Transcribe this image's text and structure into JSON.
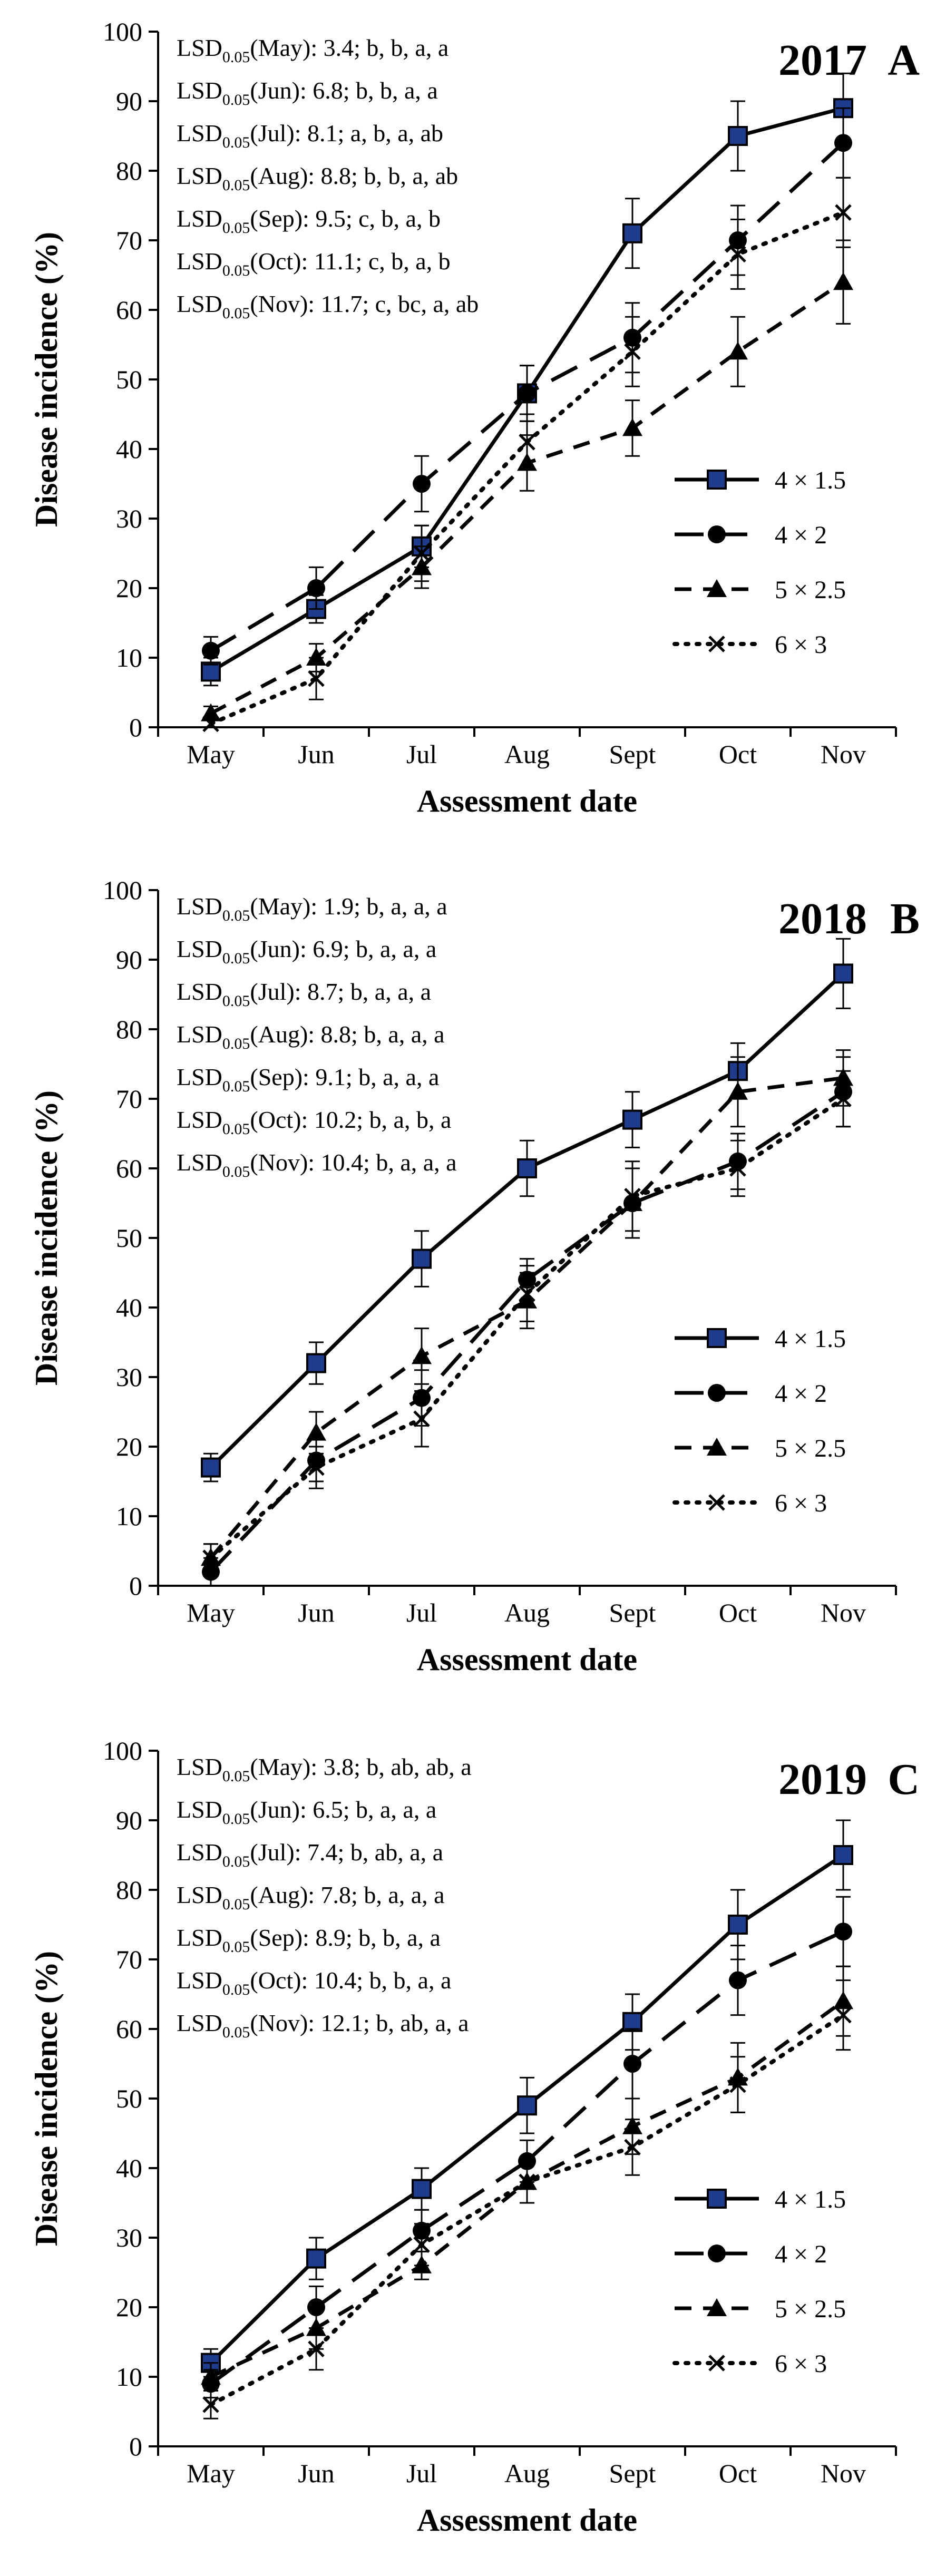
{
  "chart_data": [
    {
      "type": "line",
      "title": "2017",
      "panel_letter": "A",
      "xlabel": "Assessment date",
      "ylabel": "Disease incidence (%)",
      "categories": [
        "May",
        "Jun",
        "Jul",
        "Aug",
        "Sept",
        "Oct",
        "Nov"
      ],
      "ylim": [
        0,
        100
      ],
      "yticks": [
        "0",
        "10",
        "20",
        "30",
        "40",
        "50",
        "60",
        "70",
        "80",
        "90",
        "100"
      ],
      "legend_position": "right-lower",
      "lsd": [
        {
          "pre": "LSD",
          "sub": "0.05",
          "post": "(May):  3.4; b, b, a, a"
        },
        {
          "pre": "LSD",
          "sub": "0.05",
          "post": "(Jun): 6.8; b, b, a, a"
        },
        {
          "pre": "LSD",
          "sub": "0.05",
          "post": "(Jul): 8.1; a, b, a, ab"
        },
        {
          "pre": "LSD",
          "sub": "0.05",
          "post": "(Aug): 8.8; b, b, a, ab"
        },
        {
          "pre": "LSD",
          "sub": "0.05",
          "post": "(Sep): 9.5; c, b, a, b"
        },
        {
          "pre": "LSD",
          "sub": "0.05",
          "post": "(Oct): 11.1; c, b, a, b"
        },
        {
          "pre": "LSD",
          "sub": "0.05",
          "post": "(Nov): 11.7; c, bc, a, ab"
        }
      ],
      "series": [
        {
          "name": "4 × 1.5",
          "marker": "square",
          "dash": "solid",
          "values": [
            8,
            17,
            26,
            48,
            71,
            85,
            89
          ],
          "errors": [
            2,
            2,
            3,
            4,
            5,
            5,
            5
          ]
        },
        {
          "name": "4 × 2",
          "marker": "circle",
          "dash": "longdash",
          "values": [
            11,
            20,
            35,
            48,
            56,
            70,
            84
          ],
          "errors": [
            2,
            3,
            4,
            4,
            5,
            5,
            5
          ]
        },
        {
          "name": "5 × 2.5",
          "marker": "triangle",
          "dash": "dash",
          "values": [
            2,
            10,
            23,
            38,
            43,
            54,
            64
          ],
          "errors": [
            1,
            2,
            3,
            4,
            4,
            5,
            6
          ]
        },
        {
          "name": "6 × 3",
          "marker": "x",
          "dash": "dot",
          "values": [
            0.5,
            7,
            25,
            41,
            54,
            68,
            74
          ],
          "errors": [
            1,
            3,
            4,
            4,
            5,
            5,
            5
          ]
        }
      ]
    },
    {
      "type": "line",
      "title": "2018",
      "panel_letter": "B",
      "xlabel": "Assessment date",
      "ylabel": "Disease incidence (%)",
      "categories": [
        "May",
        "Jun",
        "Jul",
        "Aug",
        "Sept",
        "Oct",
        "Nov"
      ],
      "ylim": [
        0,
        100
      ],
      "yticks": [
        "0",
        "10",
        "20",
        "30",
        "40",
        "50",
        "60",
        "70",
        "80",
        "90",
        "100"
      ],
      "legend_position": "right-lower",
      "lsd": [
        {
          "pre": "LSD",
          "sub": "0.05",
          "post": "(May): 1.9; b, a, a, a"
        },
        {
          "pre": "LSD",
          "sub": "0.05",
          "post": "(Jun): 6.9; b, a, a, a"
        },
        {
          "pre": "LSD",
          "sub": "0.05",
          "post": "(Jul): 8.7; b, a, a, a"
        },
        {
          "pre": "LSD",
          "sub": "0.05",
          "post": "(Aug): 8.8; b, a, a, a"
        },
        {
          "pre": "LSD",
          "sub": "0.05",
          "post": "(Sep): 9.1; b, a, a, a"
        },
        {
          "pre": "LSD",
          "sub": "0.05",
          "post": "(Oct): 10.2; b, a, b, a"
        },
        {
          "pre": "LSD",
          "sub": "0.05",
          "post": "(Nov): 10.4; b, a, a, a"
        }
      ],
      "series": [
        {
          "name": "4 × 1.5",
          "marker": "square",
          "dash": "solid",
          "values": [
            17,
            32,
            47,
            60,
            67,
            74,
            88
          ],
          "errors": [
            2,
            3,
            4,
            4,
            4,
            4,
            5
          ]
        },
        {
          "name": "4 × 2",
          "marker": "circle",
          "dash": "longdash",
          "values": [
            2,
            18,
            27,
            44,
            55,
            61,
            71
          ],
          "errors": [
            2,
            3,
            4,
            3,
            5,
            4,
            5
          ]
        },
        {
          "name": "5 × 2.5",
          "marker": "triangle",
          "dash": "dash",
          "values": [
            4,
            22,
            33,
            41,
            55,
            71,
            73
          ],
          "errors": [
            2,
            3,
            4,
            4,
            5,
            5,
            4
          ]
        },
        {
          "name": "6 × 3",
          "marker": "x",
          "dash": "dot",
          "values": [
            4,
            17,
            24,
            42,
            56,
            60,
            70
          ],
          "errors": [
            2,
            3,
            4,
            4,
            5,
            4,
            4
          ]
        }
      ]
    },
    {
      "type": "line",
      "title": "2019",
      "panel_letter": "C",
      "xlabel": "Assessment date",
      "ylabel": "Disease incidence (%)",
      "categories": [
        "May",
        "Jun",
        "Jul",
        "Aug",
        "Sept",
        "Oct",
        "Nov"
      ],
      "ylim": [
        0,
        100
      ],
      "yticks": [
        "0",
        "10",
        "20",
        "30",
        "40",
        "50",
        "60",
        "70",
        "80",
        "90",
        "100"
      ],
      "legend_position": "right-lower",
      "lsd": [
        {
          "pre": "LSD",
          "sub": "0.05",
          "post": "(May): 3.8; b, ab, ab, a"
        },
        {
          "pre": "LSD",
          "sub": "0.05",
          "post": "(Jun): 6.5; b, a, a, a"
        },
        {
          "pre": "LSD",
          "sub": "0.05",
          "post": "(Jul): 7.4; b, ab, a, a"
        },
        {
          "pre": "LSD",
          "sub": "0.05",
          "post": "(Aug): 7.8; b, a, a, a"
        },
        {
          "pre": "LSD",
          "sub": "0.05",
          "post": "(Sep): 8.9; b, b, a, a"
        },
        {
          "pre": "LSD",
          "sub": "0.05",
          "post": "(Oct): 10.4; b, b, a, a"
        },
        {
          "pre": "LSD",
          "sub": "0.05",
          "post": "(Nov): 12.1; b, ab, a, a"
        }
      ],
      "series": [
        {
          "name": "4 × 1.5",
          "marker": "square",
          "dash": "solid",
          "values": [
            12,
            27,
            37,
            49,
            61,
            75,
            85
          ],
          "errors": [
            2,
            3,
            3,
            4,
            4,
            5,
            5
          ]
        },
        {
          "name": "4 × 2",
          "marker": "circle",
          "dash": "longdash",
          "values": [
            9,
            20,
            31,
            41,
            55,
            67,
            74
          ],
          "errors": [
            2,
            3,
            3,
            3,
            5,
            5,
            5
          ]
        },
        {
          "name": "5 × 2.5",
          "marker": "triangle",
          "dash": "dash",
          "values": [
            10,
            17,
            26,
            38,
            46,
            53,
            64
          ],
          "errors": [
            2,
            3,
            2,
            3,
            4,
            5,
            5
          ]
        },
        {
          "name": "6 × 3",
          "marker": "x",
          "dash": "dot",
          "values": [
            6,
            14,
            29,
            38,
            43,
            52,
            62
          ],
          "errors": [
            2,
            3,
            3,
            3,
            4,
            4,
            5
          ]
        }
      ]
    }
  ]
}
